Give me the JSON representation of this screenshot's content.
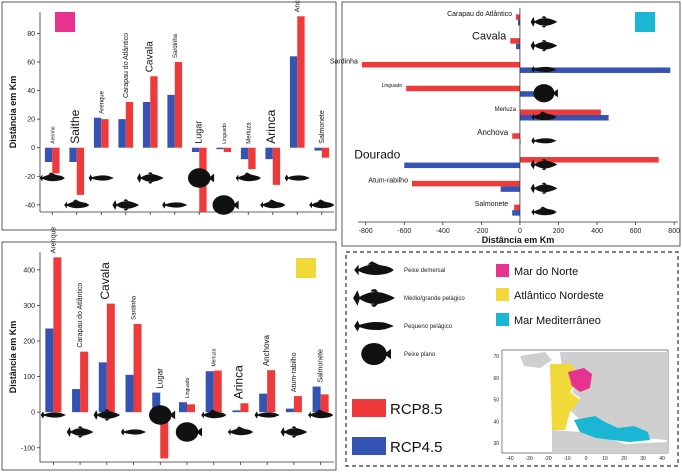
{
  "colors": {
    "rcp85": "#ee3a3b",
    "rcp45": "#3553b3",
    "north_sea": "#e7328e",
    "atlantic": "#f2d93a",
    "mediterranean": "#1ab6d3",
    "land": "#cfcfcf",
    "fish": "#111111"
  },
  "chart_data": [
    {
      "id": "north-sea",
      "type": "bar",
      "region_color": "north_sea",
      "ylabel": "Distância em Km",
      "ylim": [
        -45,
        95
      ],
      "yticks": [
        -40,
        -20,
        0,
        20,
        40,
        60,
        80
      ],
      "categories": [
        "Areinho",
        "Saithe",
        "Arenque",
        "Carapau do Atlântico",
        "Cavala",
        "Sardinha",
        "Lugar",
        "Linguado",
        "Merluza",
        "Arinca",
        "Anchova",
        "Salmonete"
      ],
      "fish_types": [
        "demersal",
        "demersal",
        "pelagic-small",
        "pelagic-large",
        "pelagic-large",
        "pelagic-small",
        "flat",
        "flat",
        "demersal",
        "demersal",
        "pelagic-small",
        "demersal"
      ],
      "series": [
        {
          "name": "RCP4.5",
          "values": [
            -10,
            -10,
            21,
            20,
            32,
            37,
            -3,
            -1,
            -8,
            -8,
            64,
            -2
          ]
        },
        {
          "name": "RCP8.5",
          "values": [
            -18,
            -33,
            20,
            32,
            50,
            60,
            -45,
            -3,
            -15,
            -26,
            92,
            -7
          ]
        }
      ]
    },
    {
      "id": "mediterranean",
      "type": "bar-horizontal",
      "region_color": "mediterranean",
      "xlabel": "Distância em Km",
      "xlim": [
        -840,
        820
      ],
      "xticks": [
        -800,
        -600,
        -400,
        -200,
        0,
        200,
        400,
        600,
        800
      ],
      "categories": [
        "Carapau do Atlântico",
        "Cavala",
        "Sardinha",
        "Linguado",
        "Merluza",
        "Anchova",
        "Dourado",
        "Atum-rabilho",
        "Salmonete"
      ],
      "fish_types": [
        "pelagic-large",
        "pelagic-large",
        "pelagic-small",
        "flat",
        "demersal",
        "pelagic-small",
        "pelagic-large",
        "pelagic-large",
        "demersal"
      ],
      "series": [
        {
          "name": "RCP8.5",
          "values": [
            -20,
            -50,
            -820,
            -590,
            420,
            -40,
            720,
            -560,
            -30
          ]
        },
        {
          "name": "RCP4.5",
          "values": [
            -10,
            -20,
            780,
            110,
            460,
            0,
            -600,
            -100,
            -40
          ]
        }
      ]
    },
    {
      "id": "ne-atlantic",
      "type": "bar",
      "region_color": "atlantic",
      "ylabel": "Distância em Km",
      "ylim": [
        -140,
        450
      ],
      "yticks": [
        -100,
        0,
        100,
        200,
        300,
        400
      ],
      "categories": [
        "Arenque",
        "Carapau do Atlântico",
        "Cavala",
        "Sardinha",
        "Lugar",
        "Linguado",
        "Merluza",
        "Arinca",
        "Anchova",
        "Atum-rabilho",
        "Salmonete"
      ],
      "fish_types": [
        "pelagic-small",
        "pelagic-large",
        "pelagic-large",
        "pelagic-small",
        "flat",
        "flat",
        "demersal",
        "demersal",
        "pelagic-small",
        "pelagic-large",
        "demersal"
      ],
      "series": [
        {
          "name": "RCP4.5",
          "values": [
            235,
            65,
            140,
            105,
            55,
            28,
            115,
            5,
            52,
            10,
            72
          ]
        },
        {
          "name": "RCP8.5",
          "values": [
            435,
            170,
            305,
            248,
            -130,
            22,
            117,
            25,
            118,
            45,
            50
          ]
        }
      ]
    }
  ],
  "legend": {
    "fish_types": [
      {
        "key": "demersal",
        "label": "Peixe demersal"
      },
      {
        "key": "pelagic-large",
        "label": "Médio/grande pelágico"
      },
      {
        "key": "pelagic-small",
        "label": "Pequeno pelágico"
      },
      {
        "key": "flat",
        "label": "Peixe plano"
      }
    ],
    "scenarios": [
      {
        "label": "RCP8.5",
        "color": "rcp85"
      },
      {
        "label": "RCP4.5",
        "color": "rcp45"
      }
    ],
    "regions": [
      {
        "label": "Mar do Norte",
        "color": "north_sea"
      },
      {
        "label": "Atlântico Nordeste",
        "color": "atlantic"
      },
      {
        "label": "Mar Mediterrâneo",
        "color": "mediterranean"
      }
    ]
  },
  "map": {
    "x_ticks": [
      -40,
      -30,
      -20,
      -10,
      0,
      10,
      20,
      30,
      40
    ],
    "y_ticks": [
      30,
      40,
      50,
      60,
      70
    ]
  }
}
